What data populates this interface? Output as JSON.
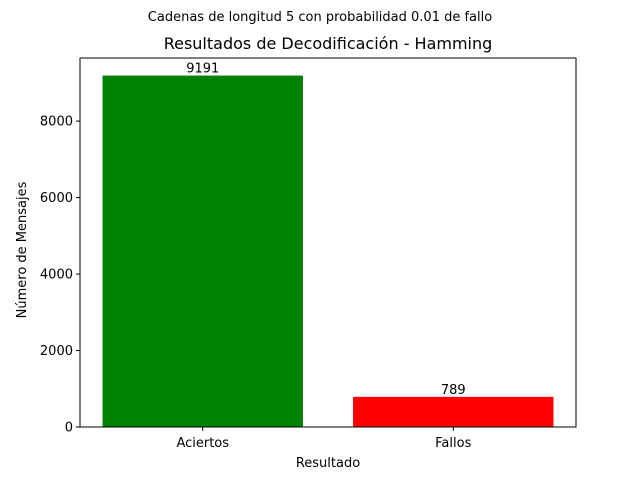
{
  "chart_data": {
    "type": "bar",
    "suptitle": "Cadenas de longitud 5 con probabilidad 0.01 de fallo",
    "title": "Resultados de Decodificación - Hamming",
    "xlabel": "Resultado",
    "ylabel": "Número de Mensajes",
    "categories": [
      "Aciertos",
      "Fallos"
    ],
    "values": [
      9191,
      789
    ],
    "data_labels": [
      "9191",
      "789"
    ],
    "colors": [
      "#008000",
      "#ff0000"
    ],
    "ylim": [
      0,
      9650.55
    ],
    "yticks": [
      0,
      2000,
      4000,
      6000,
      8000
    ],
    "ytick_labels": [
      "0",
      "2000",
      "4000",
      "6000",
      "8000"
    ],
    "grid": false,
    "legend": "none"
  }
}
